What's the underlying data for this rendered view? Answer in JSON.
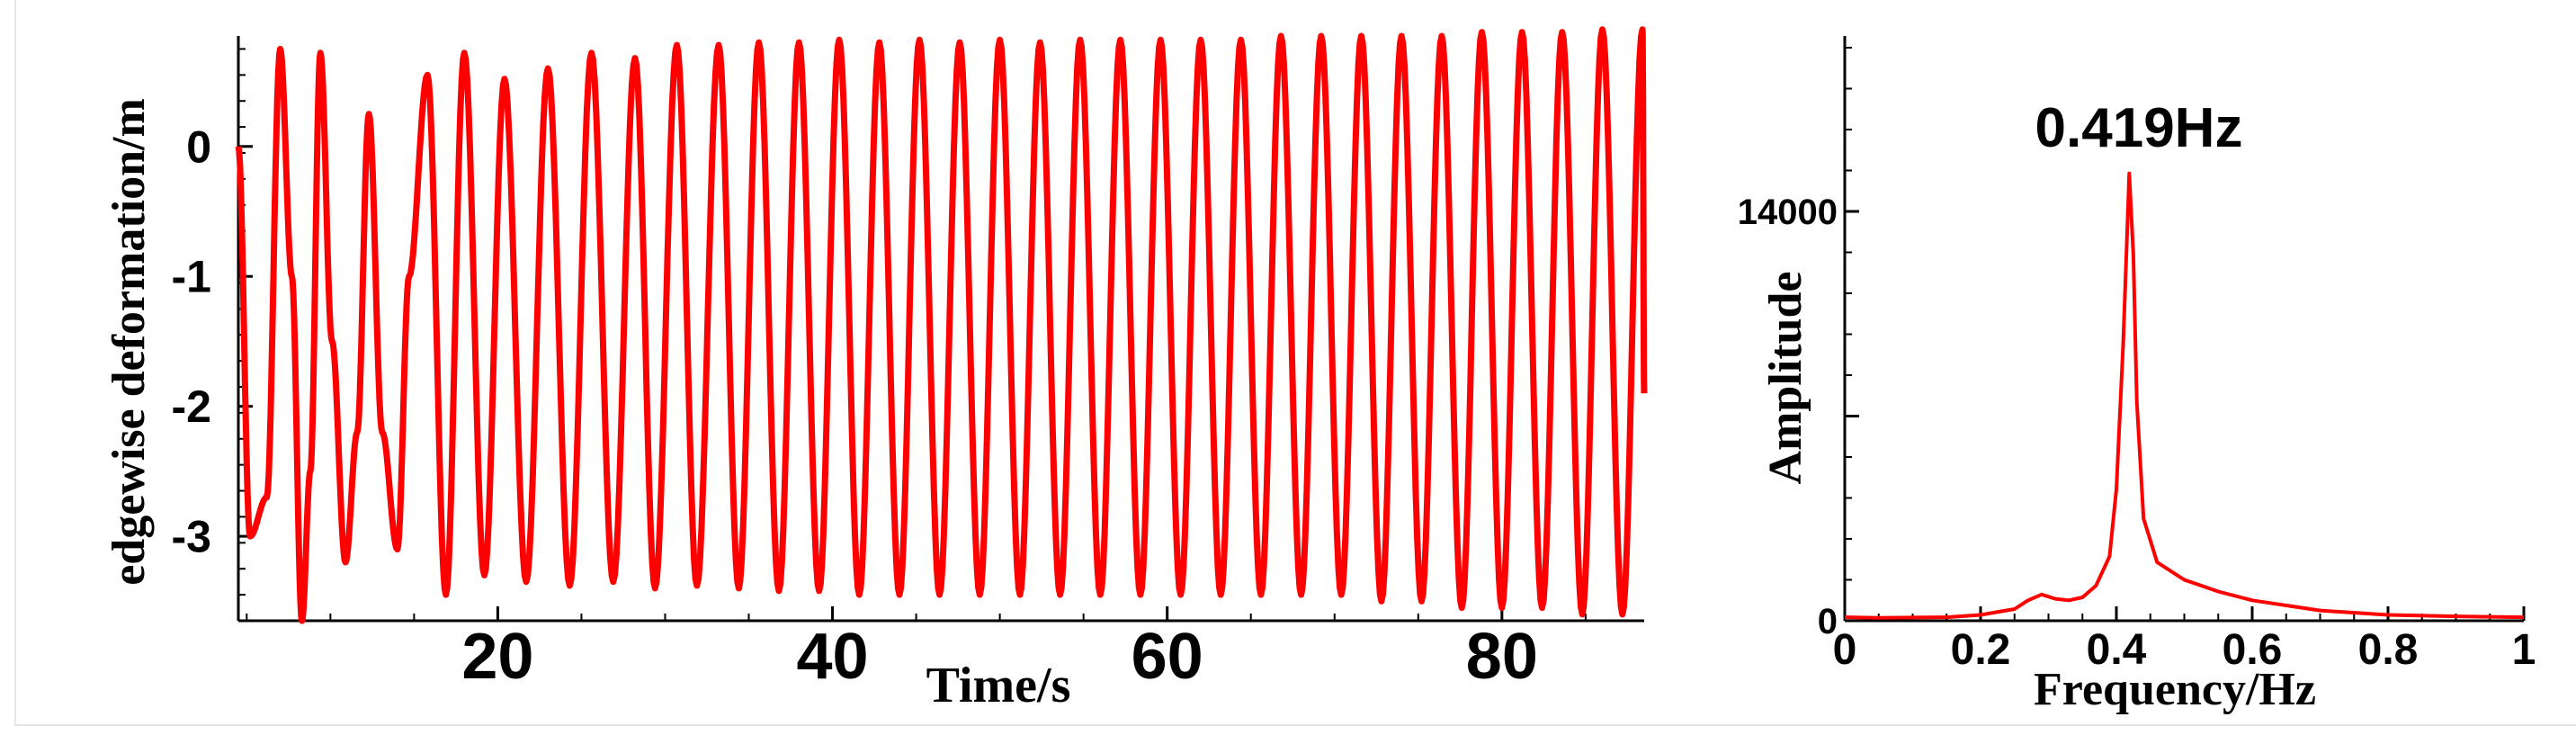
{
  "chart_data": [
    {
      "type": "line",
      "title": "",
      "xlabel": "Time/s",
      "ylabel": "edgewise deformation/m",
      "xlim": [
        4.5,
        88.5
      ],
      "ylim": [
        -3.65,
        0.85
      ],
      "x_ticks": [
        20,
        40,
        60,
        80
      ],
      "x_tick_labels": [
        "20",
        "40",
        "60",
        "80"
      ],
      "y_ticks": [
        0,
        -1,
        -2,
        -3
      ],
      "y_tick_labels": [
        "0",
        "-1",
        "-2",
        "-3"
      ],
      "color": "#ff0000",
      "grid": false,
      "series": [
        {
          "x": [
            4.5,
            5.2,
            6.2,
            7.0,
            7.7,
            8.3,
            8.8,
            9.4,
            10.1,
            10.9,
            11.6,
            12.3,
            13.1,
            14.0,
            14.7,
            15.8,
            16.9,
            18.0,
            19.2,
            20.4,
            21.7,
            23.0,
            24.3,
            25.6,
            26.9,
            28.2,
            29.4,
            30.7,
            31.9,
            33.2,
            34.4,
            35.6,
            36.8,
            38.0,
            39.2,
            40.4,
            41.6,
            42.8,
            44.0,
            45.2,
            46.4,
            47.6,
            48.8,
            50.0,
            51.2,
            52.4,
            53.6,
            54.8,
            56.0,
            57.2,
            58.4,
            59.6,
            60.8,
            62.0,
            63.2,
            64.4,
            65.6,
            66.8,
            68.0,
            69.2,
            70.4,
            71.6,
            72.8,
            74.0,
            75.2,
            76.4,
            77.6,
            78.8,
            80.0,
            81.2,
            82.4,
            83.6,
            84.8,
            86.0,
            87.2,
            88.4,
            88.5
          ],
          "y": [
            0.0,
            -3.0,
            -2.7,
            0.75,
            -1.0,
            -3.65,
            -2.5,
            0.72,
            -1.5,
            -3.2,
            -2.2,
            0.25,
            -2.2,
            -3.1,
            -1.0,
            0.55,
            -3.45,
            0.72,
            -3.3,
            0.52,
            -3.35,
            0.6,
            -3.38,
            0.72,
            -3.35,
            0.68,
            -3.4,
            0.78,
            -3.38,
            0.78,
            -3.4,
            0.8,
            -3.42,
            0.8,
            -3.42,
            0.82,
            -3.45,
            0.8,
            -3.45,
            0.82,
            -3.45,
            0.8,
            -3.45,
            0.82,
            -3.45,
            0.8,
            -3.45,
            0.82,
            -3.45,
            0.82,
            -3.45,
            0.82,
            -3.45,
            0.82,
            -3.45,
            0.82,
            -3.45,
            0.85,
            -3.45,
            0.85,
            -3.45,
            0.85,
            -3.5,
            0.85,
            -3.5,
            0.85,
            -3.55,
            0.88,
            -3.55,
            0.88,
            -3.55,
            0.88,
            -3.6,
            0.9,
            -3.6,
            0.9,
            -1.9
          ]
        }
      ]
    },
    {
      "type": "line",
      "title": "",
      "xlabel": "Frequency/Hz",
      "ylabel": "Amplitude",
      "xlim": [
        0,
        1
      ],
      "ylim": [
        0,
        20000
      ],
      "x_ticks": [
        0,
        0.2,
        0.4,
        0.6,
        0.8,
        1
      ],
      "x_tick_labels": [
        "0",
        "0.2",
        "0.4",
        "0.6",
        "0.8",
        "1"
      ],
      "y_ticks": [
        0,
        7000,
        14000
      ],
      "y_tick_labels": [
        "0",
        "",
        "14000"
      ],
      "color": "#ff0000",
      "grid": false,
      "annotation": {
        "text": "0.419Hz",
        "x": 0.419
      },
      "series": [
        {
          "x": [
            0.0,
            0.05,
            0.1,
            0.15,
            0.2,
            0.25,
            0.27,
            0.29,
            0.31,
            0.33,
            0.35,
            0.37,
            0.39,
            0.4,
            0.41,
            0.419,
            0.425,
            0.43,
            0.44,
            0.46,
            0.5,
            0.55,
            0.6,
            0.7,
            0.8,
            0.9,
            1.0
          ],
          "y": [
            120,
            100,
            110,
            120,
            200,
            400,
            700,
            900,
            750,
            700,
            800,
            1200,
            2200,
            4500,
            9500,
            15300,
            12500,
            7500,
            3500,
            2000,
            1400,
            1000,
            700,
            350,
            200,
            150,
            120
          ]
        }
      ]
    }
  ]
}
